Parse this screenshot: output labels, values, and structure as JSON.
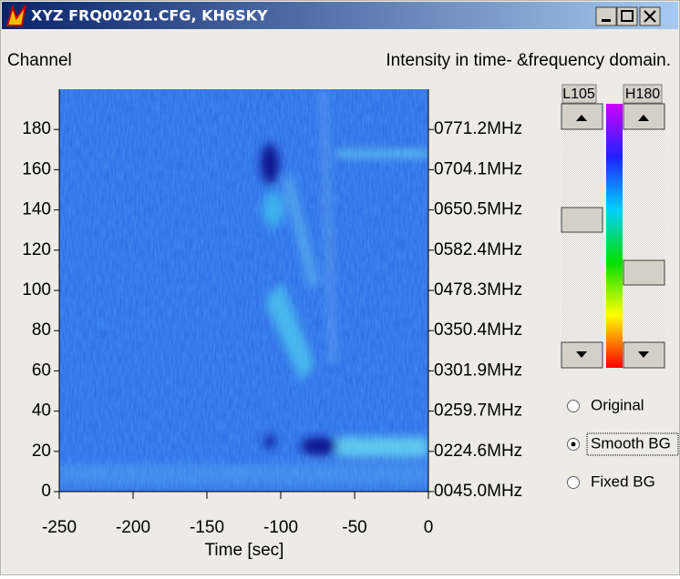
{
  "window": {
    "title": "XYZ  FRQ00201.CFG, KH6SKY"
  },
  "header": {
    "left": "Channel",
    "right": "Intensity in time- &frequency domain."
  },
  "plot": {
    "ylim": [
      0,
      200
    ],
    "yticks": [
      0,
      20,
      40,
      60,
      80,
      100,
      120,
      140,
      160,
      180
    ],
    "frequency_labels": [
      "0045.0MHz",
      "0224.6MHz",
      "0259.7MHz",
      "0301.9MHz",
      "0350.4MHz",
      "0478.3MHz",
      "0582.4MHz",
      "0650.5MHz",
      "0704.1MHz",
      "0771.2MHz"
    ],
    "xlim": [
      -250,
      0
    ],
    "xticks": [
      -250,
      -200,
      -150,
      -100,
      -50,
      0
    ],
    "xlabel": "Time [sec]"
  },
  "sliders": {
    "low": "L105",
    "high": "H180"
  },
  "modes": {
    "options": [
      "Original",
      "Smooth BG",
      "Fixed BG"
    ],
    "selected": 1
  }
}
